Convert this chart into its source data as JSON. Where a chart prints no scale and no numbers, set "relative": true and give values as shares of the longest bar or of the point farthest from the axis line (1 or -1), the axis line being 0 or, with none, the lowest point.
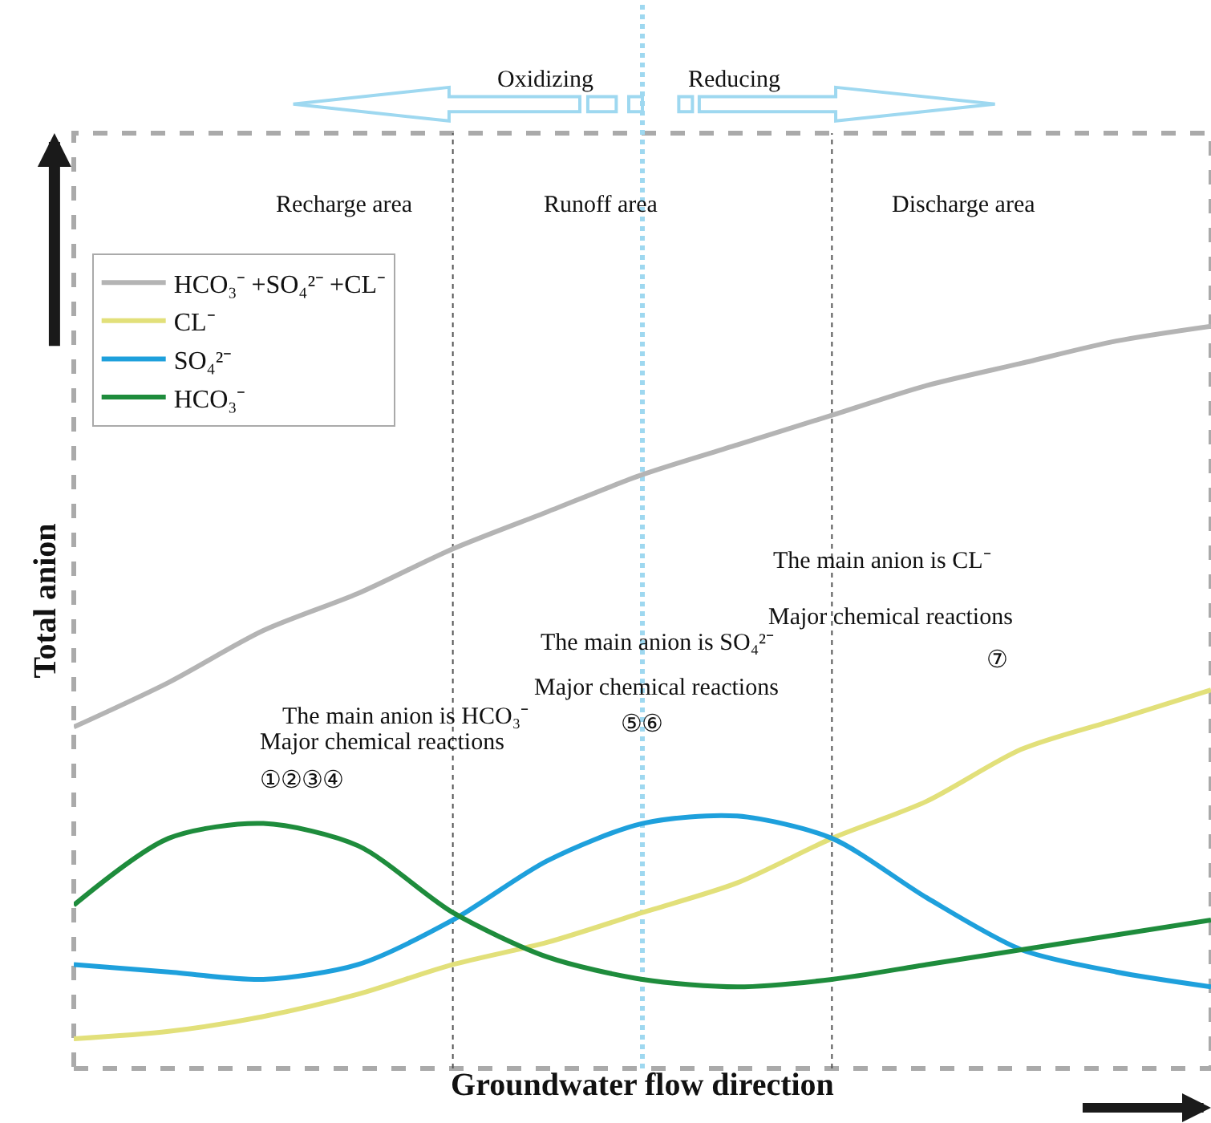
{
  "chart_data": {
    "type": "line",
    "relative": true,
    "xlabel": "Groundwater flow direction",
    "ylabel": "Total anion",
    "categories": [
      null,
      null,
      null,
      null,
      null,
      null,
      null,
      null,
      null,
      null,
      null,
      null,
      null
    ],
    "series": [
      {
        "name": "HCO₃⁻ +SO₄²⁻ +CL⁻",
        "color": "#b4b4b4",
        "values": [
          0.46,
          0.52,
          0.59,
          0.64,
          0.7,
          0.75,
          0.8,
          0.84,
          0.88,
          0.92,
          0.95,
          0.98,
          1.0
        ]
      },
      {
        "name": "CL⁻",
        "color": "#e2e07a",
        "values": [
          0.04,
          0.05,
          0.07,
          0.1,
          0.14,
          0.17,
          0.21,
          0.25,
          0.31,
          0.36,
          0.43,
          0.47,
          0.51
        ]
      },
      {
        "name": "SO₄²⁻",
        "color": "#1ea0dc",
        "values": [
          0.14,
          0.13,
          0.12,
          0.14,
          0.2,
          0.28,
          0.33,
          0.34,
          0.31,
          0.23,
          0.16,
          0.13,
          0.11
        ]
      },
      {
        "name": "HCO₃⁻",
        "color": "#1e8c3c",
        "values": [
          0.22,
          0.31,
          0.33,
          0.3,
          0.21,
          0.15,
          0.12,
          0.11,
          0.12,
          0.14,
          0.16,
          0.18,
          0.2
        ]
      }
    ],
    "annotations": [
      "Recharge area",
      "Runoff area",
      "Discharge area",
      "The main anion is HCO₃⁻",
      "Major chemical reactions",
      "①②③④",
      "The main anion is SO₄²⁻",
      "Major chemical reactions",
      "⑤⑥",
      "The main anion is CL⁻",
      "Major chemical reactions",
      "⑦",
      "Oxidizing",
      "Reducing"
    ],
    "legend": "top left",
    "grid": false,
    "marker": "none",
    "line_style": "solid"
  }
}
